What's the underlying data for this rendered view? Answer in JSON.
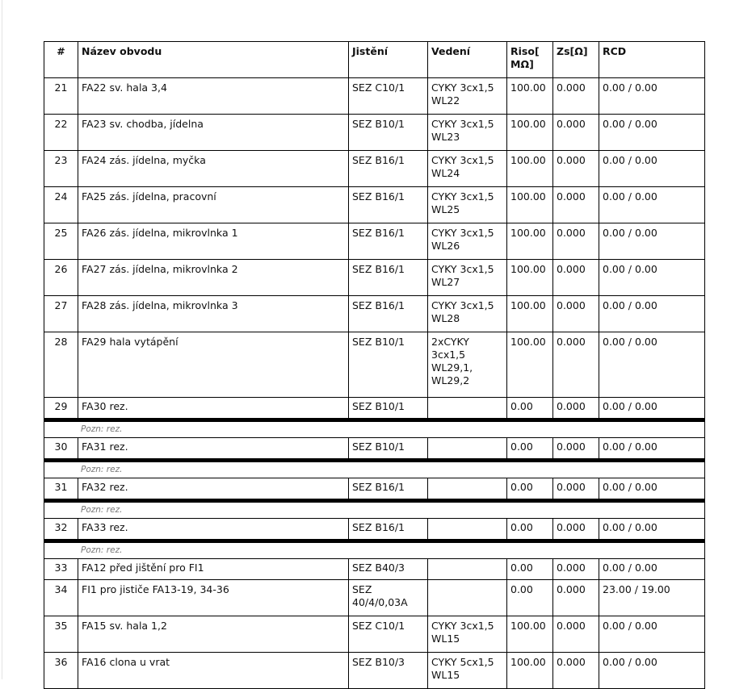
{
  "table": {
    "headers": [
      "#",
      "Název obvodu",
      "Jistění",
      "Vedení",
      "Riso[ MΩ]",
      "Zs[Ω]",
      "RCD"
    ],
    "rows": [
      {
        "num": "21",
        "name": "FA22 sv. hala 3,4",
        "breaker": "SEZ C10/1",
        "cable": "CYKY 3cx1,5 WL22",
        "riso": "100.00",
        "zs": "0.000",
        "rcd": "0.00 / 0.00"
      },
      {
        "num": "22",
        "name": "FA23 sv. chodba, jídelna",
        "breaker": "SEZ B10/1",
        "cable": "CYKY 3cx1,5 WL23",
        "riso": "100.00",
        "zs": "0.000",
        "rcd": "0.00 / 0.00"
      },
      {
        "num": "23",
        "name": "FA24 zás. jídelna, myčka",
        "breaker": "SEZ B16/1",
        "cable": "CYKY 3cx1,5 WL24",
        "riso": "100.00",
        "zs": "0.000",
        "rcd": "0.00 / 0.00"
      },
      {
        "num": "24",
        "name": "FA25 zás. jídelna, pracovní",
        "breaker": "SEZ B16/1",
        "cable": "CYKY 3cx1,5 WL25",
        "riso": "100.00",
        "zs": "0.000",
        "rcd": "0.00 / 0.00"
      },
      {
        "num": "25",
        "name": "FA26 zás. jídelna, mikrovlnka 1",
        "breaker": "SEZ B16/1",
        "cable": "CYKY 3cx1,5 WL26",
        "riso": "100.00",
        "zs": "0.000",
        "rcd": "0.00 / 0.00"
      },
      {
        "num": "26",
        "name": "FA27 zás. jídelna, mikrovlnka 2",
        "breaker": "SEZ B16/1",
        "cable": "CYKY 3cx1,5 WL27",
        "riso": "100.00",
        "zs": "0.000",
        "rcd": "0.00 / 0.00"
      },
      {
        "num": "27",
        "name": "FA28 zás. jídelna, mikrovlnka 3",
        "breaker": "SEZ B16/1",
        "cable": "CYKY 3cx1,5 WL28",
        "riso": "100.00",
        "zs": "0.000",
        "rcd": "0.00 / 0.00"
      },
      {
        "num": "28",
        "name": "FA29 hala vytápění",
        "breaker": "SEZ B10/1",
        "cable": "2xCYKY 3cx1,5 WL29,1, WL29,2",
        "riso": "100.00",
        "zs": "0.000",
        "rcd": "0.00 / 0.00"
      },
      {
        "num": "29",
        "name": "FA30 rez.",
        "breaker": "SEZ B10/1",
        "cable": "",
        "riso": "0.00",
        "zs": "0.000",
        "rcd": "0.00 / 0.00",
        "note": "Pozn: rez."
      },
      {
        "num": "30",
        "name": "FA31 rez.",
        "breaker": "SEZ B10/1",
        "cable": "",
        "riso": "0.00",
        "zs": "0.000",
        "rcd": "0.00 / 0.00",
        "note": "Pozn: rez."
      },
      {
        "num": "31",
        "name": "FA32 rez.",
        "breaker": "SEZ B16/1",
        "cable": "",
        "riso": "0.00",
        "zs": "0.000",
        "rcd": "0.00 / 0.00",
        "note": "Pozn: rez."
      },
      {
        "num": "32",
        "name": "FA33 rez.",
        "breaker": "SEZ B16/1",
        "cable": "",
        "riso": "0.00",
        "zs": "0.000",
        "rcd": "0.00 / 0.00",
        "note": "Pozn: rez."
      },
      {
        "num": "33",
        "name": "FA12 před jištění pro FI1",
        "breaker": "SEZ B40/3",
        "cable": "",
        "riso": "0.00",
        "zs": "0.000",
        "rcd": "0.00 / 0.00"
      },
      {
        "num": "34",
        "name": "FI1 pro jističe FA13-19, 34-36",
        "breaker": "SEZ 40/4/0,03A",
        "cable": "",
        "riso": "0.00",
        "zs": "0.000",
        "rcd": "23.00 / 19.00"
      },
      {
        "num": "35",
        "name": "FA15 sv. hala 1,2",
        "breaker": "SEZ C10/1",
        "cable": "CYKY 3cx1,5 WL15",
        "riso": "100.00",
        "zs": "0.000",
        "rcd": "0.00 / 0.00"
      },
      {
        "num": "36",
        "name": "FA16 clona u vrat",
        "breaker": "SEZ B10/3",
        "cable": "CYKY 5cx1,5 WL15",
        "riso": "100.00",
        "zs": "0.000",
        "rcd": "0.00 / 0.00"
      }
    ]
  }
}
